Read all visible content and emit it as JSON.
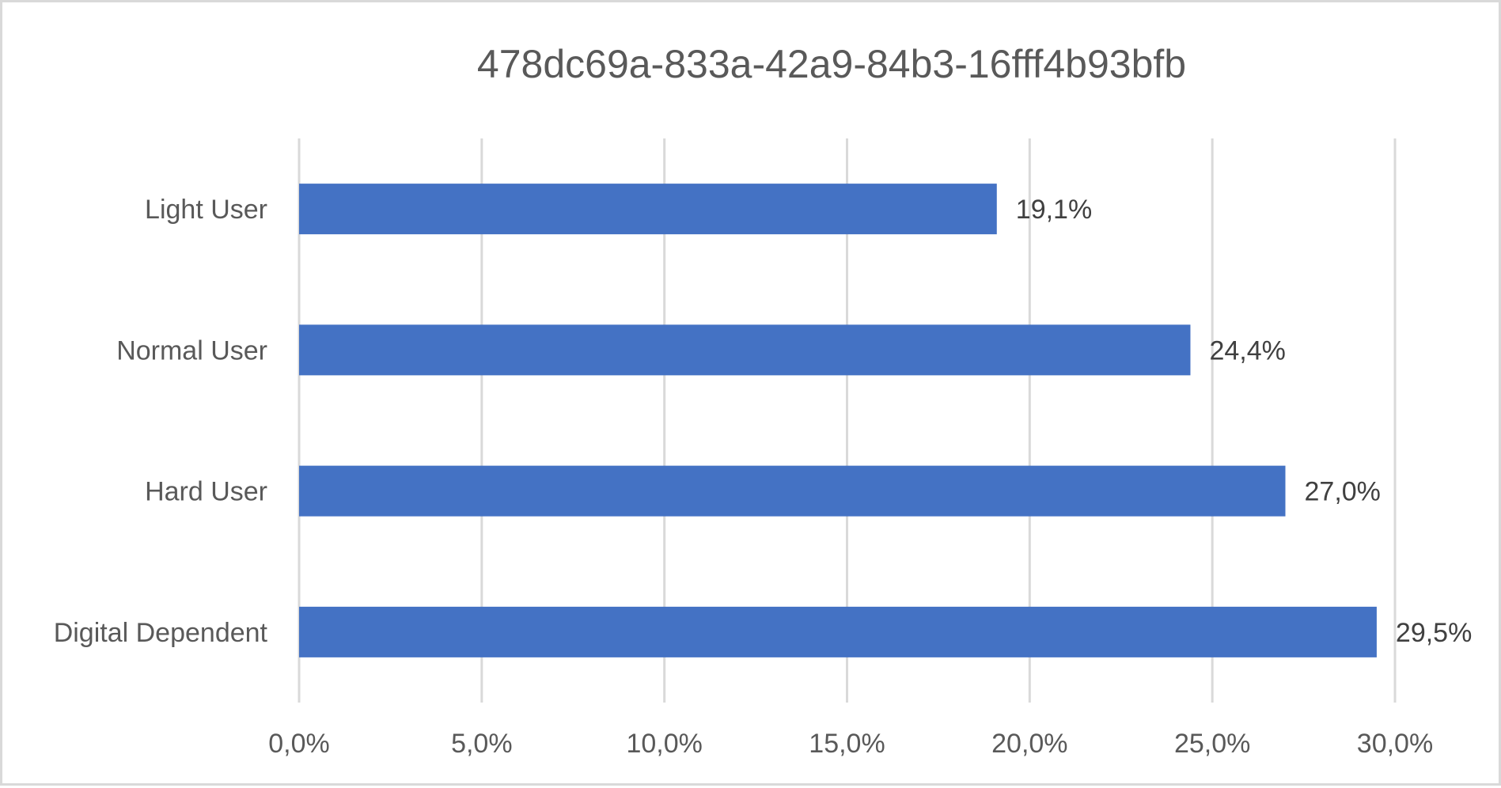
{
  "chart_data": {
    "type": "bar",
    "orientation": "horizontal",
    "title": "478dc69a-833a-42a9-84b3-16fff4b93bfb",
    "categories": [
      "Light User",
      "Normal User",
      "Hard User",
      "Digital Dependent"
    ],
    "values": [
      19.1,
      24.4,
      27.0,
      29.5
    ],
    "data_labels": [
      "19,1%",
      "24,4%",
      "27,0%",
      "29,5%"
    ],
    "xlim": [
      0,
      30
    ],
    "xticks": [
      0,
      5,
      10,
      15,
      20,
      25,
      30
    ],
    "xtick_labels": [
      "0,0%",
      "5,0%",
      "10,0%",
      "15,0%",
      "20,0%",
      "25,0%",
      "30,0%"
    ],
    "xlabel": "",
    "ylabel": "",
    "grid": true,
    "legend": "none",
    "bar_color": "#4472C4"
  }
}
